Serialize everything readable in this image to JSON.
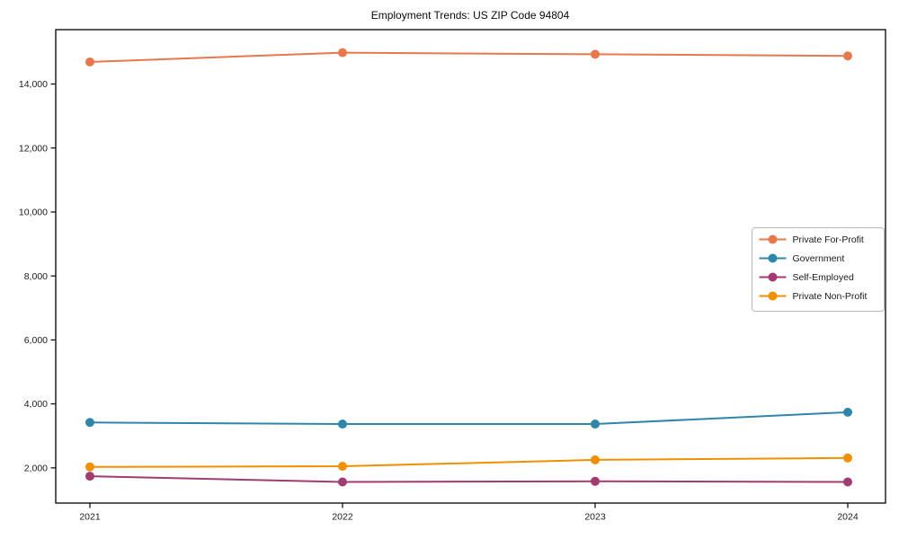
{
  "title": "Employment Trends: US ZIP Code 94804",
  "chart_data": {
    "type": "line",
    "title": "Employment Trends: US ZIP Code 94804",
    "xlabel": "",
    "ylabel": "",
    "x": [
      2021,
      2022,
      2023,
      2024
    ],
    "x_tick_labels": [
      "2021",
      "2022",
      "2023",
      "2024"
    ],
    "y_ticks": [
      2000,
      4000,
      6000,
      8000,
      10000,
      12000,
      14000
    ],
    "y_tick_labels": [
      "2,000",
      "4,000",
      "6,000",
      "8,000",
      "10,000",
      "12,000",
      "14,000"
    ],
    "ylim": [
      900,
      15700
    ],
    "grid": false,
    "marker": "circle",
    "legend_position": "right",
    "legend_border_color": "#b8b8b8",
    "axis_color": "#000000",
    "series": [
      {
        "name": "Private For-Profit",
        "color": "#E8784C",
        "values": [
          14690,
          14980,
          14930,
          14880
        ]
      },
      {
        "name": "Government",
        "color": "#2E86AB",
        "values": [
          3420,
          3370,
          3370,
          3740
        ]
      },
      {
        "name": "Self-Employed",
        "color": "#A23B72",
        "values": [
          1740,
          1560,
          1580,
          1560
        ]
      },
      {
        "name": "Private Non-Profit",
        "color": "#F18F01",
        "values": [
          2030,
          2050,
          2250,
          2310
        ]
      }
    ]
  }
}
